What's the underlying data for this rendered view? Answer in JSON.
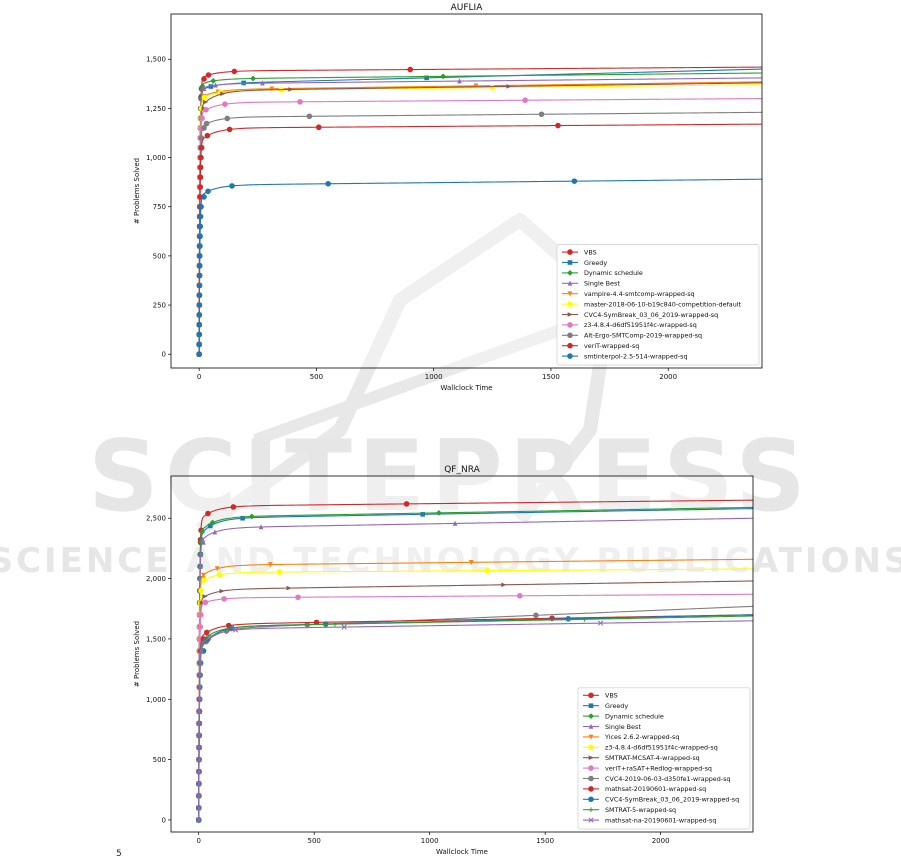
{
  "watermark": {
    "big": "SCITEPRESS",
    "small": "SCIENCE AND TECHNOLOGY PUBLICATIONS"
  },
  "footer_glyph": "5",
  "chart_data": [
    {
      "type": "line",
      "title": "AUFLIA",
      "xlabel": "Wallclock Time",
      "ylabel": "# Problems Solved",
      "xlim": [
        -120,
        2400
      ],
      "ylim": [
        -70,
        1730
      ],
      "xticks": [
        0,
        500,
        1000,
        1500,
        2000
      ],
      "yticks": [
        0,
        250,
        500,
        750,
        1000,
        1250,
        1500
      ],
      "grid": false,
      "legend_position": "lower-right",
      "series": [
        {
          "name": "VBS",
          "color": "#d62728",
          "marker": "o",
          "final": 1460,
          "knee": 1400,
          "plateau": 1440,
          "late": 1460
        },
        {
          "name": "Greedy",
          "color": "#1f77b4",
          "marker": "s",
          "final": 1450,
          "knee": 1340,
          "plateau": 1375,
          "late": 1440
        },
        {
          "name": "Dynamic schedule",
          "color": "#2ca02c",
          "marker": "D",
          "final": 1430,
          "knee": 1370,
          "plateau": 1400,
          "late": 1420
        },
        {
          "name": "Single Best",
          "color": "#9467bd",
          "marker": "^",
          "final": 1405,
          "knee": 1350,
          "plateau": 1375,
          "late": 1400
        },
        {
          "name": "vampire-4.4-smtcomp-wrapped-sq",
          "color": "#ff7f0e",
          "marker": "v",
          "final": 1385,
          "knee": 1300,
          "plateau": 1345,
          "late": 1380
        },
        {
          "name": "master-2018-06-10-b19c840-competition-default",
          "color": "#ffff00",
          "marker": "o",
          "final": 1370,
          "knee": 1290,
          "plateau": 1340,
          "late": 1365
        },
        {
          "name": "CVC4-SymBreak_03_06_2019-wrapped-sq",
          "color": "#8c564b",
          "marker": ">",
          "final": 1380,
          "knee": 1250,
          "plateau": 1340,
          "late": 1375
        },
        {
          "name": "z3-4.8.4-d6df51951f4c-wrapped-sq",
          "color": "#e377c2",
          "marker": "o",
          "final": 1300,
          "knee": 1220,
          "plateau": 1280,
          "late": 1295
        },
        {
          "name": "Alt-Ergo-SMTComp-2019-wrapped-sq",
          "color": "#7f7f7f",
          "marker": "o",
          "final": 1230,
          "knee": 1150,
          "plateau": 1205,
          "late": 1220
        },
        {
          "name": "veriT-wrapped-sq",
          "color": "#d62728",
          "marker": "o",
          "final": 1170,
          "knee": 1080,
          "plateau": 1150,
          "late": 1165
        },
        {
          "name": "smtinterpol-2.5-514-wrapped-sq",
          "color": "#1f77b4",
          "marker": "o",
          "final": 890,
          "knee": 800,
          "plateau": 860,
          "late": 880
        }
      ]
    },
    {
      "type": "line",
      "title": "QF_NRA",
      "xlabel": "Wallclock Time",
      "ylabel": "# Problems Solved",
      "xlim": [
        -120,
        2400
      ],
      "ylim": [
        -100,
        2850
      ],
      "xticks": [
        0,
        500,
        1000,
        1500,
        2000
      ],
      "yticks": [
        0,
        500,
        1000,
        1500,
        2000,
        2500
      ],
      "grid": false,
      "legend_position": "lower-right",
      "series": [
        {
          "name": "VBS",
          "color": "#d62728",
          "marker": "o",
          "final": 2650,
          "knee": 2480,
          "plateau": 2600,
          "late": 2640
        },
        {
          "name": "Greedy",
          "color": "#1f77b4",
          "marker": "s",
          "final": 2580,
          "knee": 2350,
          "plateau": 2500,
          "late": 2570
        },
        {
          "name": "Dynamic schedule",
          "color": "#2ca02c",
          "marker": "D",
          "final": 2590,
          "knee": 2380,
          "plateau": 2510,
          "late": 2580
        },
        {
          "name": "Single Best",
          "color": "#9467bd",
          "marker": "^",
          "final": 2500,
          "knee": 2300,
          "plateau": 2420,
          "late": 2490
        },
        {
          "name": "Yices 2.6.2-wrapped-sq",
          "color": "#ff7f0e",
          "marker": "v",
          "final": 2160,
          "knee": 2000,
          "plateau": 2110,
          "late": 2150
        },
        {
          "name": "z3-4.8.4-d6df51951f4c-wrapped-sq",
          "color": "#ffff00",
          "marker": "o",
          "final": 2080,
          "knee": 1960,
          "plateau": 2050,
          "late": 2075
        },
        {
          "name": "SMTRAT-MCSAT-4-wrapped-sq",
          "color": "#8c564b",
          "marker": ">",
          "final": 1980,
          "knee": 1820,
          "plateau": 1910,
          "late": 1970
        },
        {
          "name": "veriT+raSAT+Redlog-wrapped-sq",
          "color": "#e377c2",
          "marker": "o",
          "final": 1870,
          "knee": 1780,
          "plateau": 1840,
          "late": 1865
        },
        {
          "name": "CVC4-2019-06-03-d350fe1-wrapped-sq",
          "color": "#7f7f7f",
          "marker": "o",
          "final": 1770,
          "knee": 1400,
          "plateau": 1580,
          "late": 1740
        },
        {
          "name": "mathsat-20190601-wrapped-sq",
          "color": "#d62728",
          "marker": "o",
          "final": 1700,
          "knee": 1500,
          "plateau": 1620,
          "late": 1690
        },
        {
          "name": "CVC4-SymBreak_03_06_2019-wrapped-sq",
          "color": "#1f77b4",
          "marker": "o",
          "final": 1700,
          "knee": 1400,
          "plateau": 1600,
          "late": 1695
        },
        {
          "name": "SMTRAT-5-wrapped-sq",
          "color": "#2ca02c",
          "marker": "+",
          "final": 1690,
          "knee": 1450,
          "plateau": 1600,
          "late": 1685
        },
        {
          "name": "mathsat-na-20190601-wrapped-sq",
          "color": "#9467bd",
          "marker": "x",
          "final": 1650,
          "knee": 1430,
          "plateau": 1580,
          "late": 1640
        }
      ]
    }
  ]
}
